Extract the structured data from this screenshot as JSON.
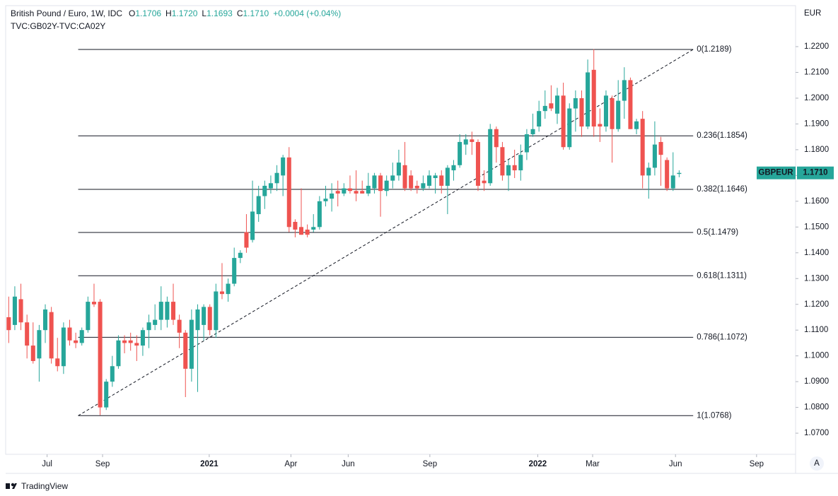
{
  "chart_data": {
    "type": "candlestick",
    "title": "British Pound / Euro, 1W, IDC",
    "ohlc_header": [
      {
        "label": "O",
        "value": "1.1706"
      },
      {
        "label": "H",
        "value": "1.1720"
      },
      {
        "label": "L",
        "value": "1.1693"
      },
      {
        "label": "C",
        "value": "1.1710"
      }
    ],
    "change": "+0.0004 (+0.04%)",
    "subtitle": "TVC:GB02Y-TVC:CA02Y",
    "y_axis_label": "EUR",
    "up_color": "#26a69a",
    "down_color": "#ef5350",
    "open": [
      1.115,
      1.112,
      1.122,
      1.113,
      1.104,
      1.099,
      1.11,
      1.117,
      1.099,
      1.096,
      1.111,
      1.106,
      1.105,
      1.11,
      1.121,
      1.121,
      1.08,
      1.09,
      1.096,
      1.106,
      1.106,
      1.105,
      1.104,
      1.11,
      1.112,
      1.114,
      1.114,
      1.121,
      1.114,
      1.109,
      1.095,
      1.11,
      1.112,
      1.119,
      1.11,
      1.125,
      1.124,
      1.128,
      1.138,
      1.148,
      1.145,
      1.155,
      1.162,
      1.165,
      1.167,
      1.17,
      1.177,
      1.152,
      1.15,
      1.149,
      1.149,
      1.15,
      1.16,
      1.161,
      1.164,
      1.163,
      1.165,
      1.164,
      1.164,
      1.163,
      1.165,
      1.17,
      1.164,
      1.168,
      1.17,
      1.174,
      1.17,
      1.166,
      1.165,
      1.166,
      1.169,
      1.17,
      1.166,
      1.172,
      1.174,
      1.182,
      1.184,
      1.183,
      1.168,
      1.167,
      1.188,
      1.181,
      1.17,
      1.174,
      1.172,
      1.179,
      1.186,
      1.189,
      1.195,
      1.198,
      1.194,
      1.201,
      1.181,
      1.196,
      1.2,
      1.189,
      1.211,
      1.19,
      1.189,
      1.2,
      1.188,
      1.199,
      1.207,
      1.188,
      1.192,
      1.17,
      1.173,
      1.183,
      1.176,
      1.165,
      1.1706
    ],
    "high": [
      1.123,
      1.127,
      1.128,
      1.116,
      1.113,
      1.112,
      1.12,
      1.119,
      1.107,
      1.113,
      1.114,
      1.109,
      1.111,
      1.123,
      1.128,
      1.122,
      1.091,
      1.1,
      1.108,
      1.108,
      1.109,
      1.108,
      1.111,
      1.116,
      1.12,
      1.127,
      1.123,
      1.128,
      1.116,
      1.11,
      1.118,
      1.12,
      1.12,
      1.12,
      1.128,
      1.136,
      1.13,
      1.142,
      1.141,
      1.155,
      1.168,
      1.166,
      1.168,
      1.17,
      1.174,
      1.178,
      1.181,
      1.153,
      1.165,
      1.151,
      1.155,
      1.162,
      1.166,
      1.167,
      1.168,
      1.167,
      1.17,
      1.172,
      1.168,
      1.171,
      1.171,
      1.171,
      1.17,
      1.175,
      1.18,
      1.183,
      1.172,
      1.168,
      1.17,
      1.172,
      1.171,
      1.172,
      1.174,
      1.176,
      1.186,
      1.186,
      1.187,
      1.184,
      1.172,
      1.19,
      1.189,
      1.183,
      1.176,
      1.18,
      1.182,
      1.188,
      1.194,
      1.199,
      1.203,
      1.205,
      1.204,
      1.206,
      1.198,
      1.203,
      1.203,
      1.215,
      1.219,
      1.196,
      1.203,
      1.201,
      1.207,
      1.212,
      1.208,
      1.192,
      1.195,
      1.175,
      1.191,
      1.185,
      1.177,
      1.179,
      1.172
    ],
    "low": [
      1.105,
      1.11,
      1.11,
      1.099,
      1.097,
      1.09,
      1.105,
      1.097,
      1.094,
      1.093,
      1.104,
      1.103,
      1.104,
      1.109,
      1.119,
      1.077,
      1.079,
      1.088,
      1.095,
      1.101,
      1.102,
      1.098,
      1.1,
      1.103,
      1.11,
      1.11,
      1.111,
      1.112,
      1.103,
      1.084,
      1.09,
      1.086,
      1.106,
      1.108,
      1.107,
      1.122,
      1.121,
      1.127,
      1.136,
      1.14,
      1.144,
      1.152,
      1.157,
      1.163,
      1.164,
      1.162,
      1.148,
      1.146,
      1.147,
      1.146,
      1.148,
      1.149,
      1.158,
      1.156,
      1.158,
      1.162,
      1.163,
      1.16,
      1.163,
      1.162,
      1.163,
      1.154,
      1.162,
      1.165,
      1.168,
      1.164,
      1.164,
      1.163,
      1.164,
      1.165,
      1.163,
      1.163,
      1.155,
      1.168,
      1.173,
      1.178,
      1.178,
      1.164,
      1.164,
      1.166,
      1.175,
      1.168,
      1.164,
      1.169,
      1.168,
      1.176,
      1.185,
      1.187,
      1.192,
      1.195,
      1.19,
      1.18,
      1.18,
      1.187,
      1.185,
      1.188,
      1.185,
      1.183,
      1.187,
      1.175,
      1.187,
      1.192,
      1.188,
      1.186,
      1.165,
      1.161,
      1.17,
      1.166,
      1.164,
      1.164,
      1.1693
    ],
    "close": [
      1.11,
      1.123,
      1.113,
      1.104,
      1.098,
      1.11,
      1.118,
      1.099,
      1.096,
      1.111,
      1.106,
      1.105,
      1.11,
      1.121,
      1.12,
      1.08,
      1.09,
      1.096,
      1.106,
      1.105,
      1.105,
      1.104,
      1.11,
      1.113,
      1.114,
      1.121,
      1.121,
      1.114,
      1.109,
      1.095,
      1.114,
      1.118,
      1.119,
      1.11,
      1.125,
      1.124,
      1.128,
      1.138,
      1.14,
      1.142,
      1.156,
      1.162,
      1.166,
      1.167,
      1.171,
      1.177,
      1.15,
      1.149,
      1.147,
      1.147,
      1.15,
      1.16,
      1.161,
      1.163,
      1.163,
      1.165,
      1.164,
      1.163,
      1.163,
      1.166,
      1.17,
      1.164,
      1.168,
      1.17,
      1.175,
      1.165,
      1.165,
      1.165,
      1.167,
      1.17,
      1.17,
      1.166,
      1.173,
      1.174,
      1.183,
      1.184,
      1.183,
      1.166,
      1.167,
      1.188,
      1.181,
      1.17,
      1.174,
      1.172,
      1.178,
      1.186,
      1.188,
      1.195,
      1.197,
      1.196,
      1.201,
      1.181,
      1.196,
      1.2,
      1.189,
      1.21,
      1.189,
      1.189,
      1.201,
      1.188,
      1.199,
      1.207,
      1.188,
      1.191,
      1.17,
      1.173,
      1.182,
      1.178,
      1.165,
      1.17,
      1.171
    ],
    "xlim": [
      -0.5,
      129.1
    ],
    "xticks": [
      {
        "value": 6.3,
        "label": "Jul"
      },
      {
        "value": 15.4,
        "label": "Sep"
      },
      {
        "value": 32.9,
        "label": "2021"
      },
      {
        "value": 46.3,
        "label": "Apr"
      },
      {
        "value": 55.7,
        "label": "Jun"
      },
      {
        "value": 69.1,
        "label": "Sep"
      },
      {
        "value": 86.8,
        "label": "2022"
      },
      {
        "value": 95.8,
        "label": "Mar"
      },
      {
        "value": 109.4,
        "label": "Jun"
      },
      {
        "value": 122.7,
        "label": "Sep"
      }
    ],
    "ylim": [
      1.0618,
      1.2359
    ],
    "yticks": [
      {
        "value": 1.07,
        "label": "1.0700"
      },
      {
        "value": 1.08,
        "label": "1.0800"
      },
      {
        "value": 1.09,
        "label": "1.0900"
      },
      {
        "value": 1.1,
        "label": "1.1000"
      },
      {
        "value": 1.11,
        "label": "1.1100"
      },
      {
        "value": 1.12,
        "label": "1.1200"
      },
      {
        "value": 1.13,
        "label": "1.1300"
      },
      {
        "value": 1.14,
        "label": "1.1400"
      },
      {
        "value": 1.15,
        "label": "1.1500"
      },
      {
        "value": 1.16,
        "label": "1.1600"
      },
      {
        "value": 1.17,
        "label": "1.1700"
      },
      {
        "value": 1.18,
        "label": "1.1800"
      },
      {
        "value": 1.19,
        "label": "1.1900"
      },
      {
        "value": 1.2,
        "label": "1.2000"
      },
      {
        "value": 1.21,
        "label": "1.2100"
      },
      {
        "value": 1.22,
        "label": "1.2200"
      }
    ],
    "grid": false,
    "fib_x": [
      11.4,
      112.3
    ],
    "fib_levels": [
      {
        "value": 1.2189,
        "label": "0(1.2189)"
      },
      {
        "value": 1.1854,
        "label": "0.236(1.1854)"
      },
      {
        "value": 1.1646,
        "label": "0.382(1.1646)"
      },
      {
        "value": 1.1479,
        "label": "0.5(1.1479)"
      },
      {
        "value": 1.1311,
        "label": "0.618(1.1311)"
      },
      {
        "value": 1.1072,
        "label": "0.786(1.1072)"
      },
      {
        "value": 1.0768,
        "label": "1(1.0768)"
      }
    ],
    "last_price": {
      "symbol": "GBPEUR",
      "value": 1.171,
      "label": "1.1710"
    },
    "scale_button": "A",
    "brand": "TradingView"
  }
}
